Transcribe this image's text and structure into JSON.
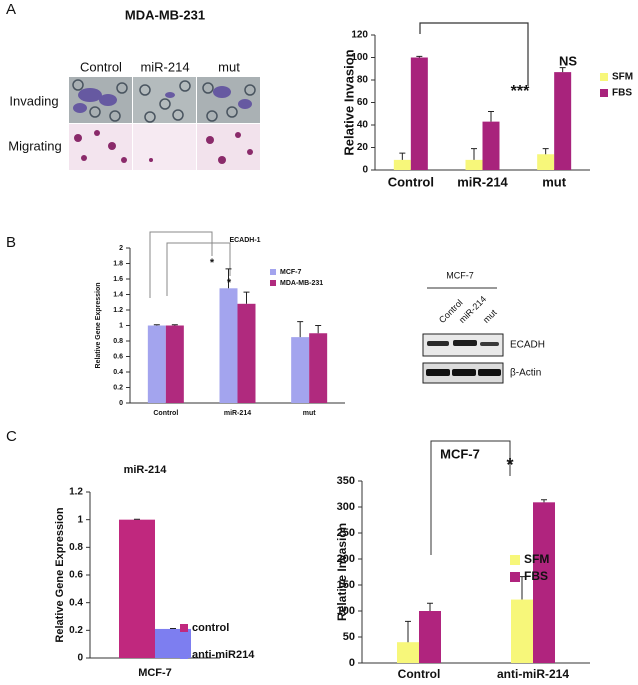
{
  "panel_labels": [
    "A",
    "B",
    "C"
  ],
  "panel_a": {
    "title": "MDA-MB-231",
    "columns": [
      "Control",
      "miR-214",
      "mut"
    ],
    "rows": [
      "Invading",
      "Migrating"
    ]
  },
  "western_blot": {
    "title": "MCF-7",
    "lanes": [
      "Control",
      "miR-214",
      "mut"
    ],
    "bands": [
      "ECADH",
      "β-Actin"
    ]
  },
  "chart_data": [
    {
      "type": "bar",
      "y_label": "Relative Invasion",
      "categories": [
        "Control",
        "miR-214",
        "mut"
      ],
      "series": [
        {
          "name": "SFM",
          "color": "#f7f77a",
          "values": [
            9,
            9,
            14
          ],
          "errors": [
            6,
            10,
            5
          ]
        },
        {
          "name": "FBS",
          "color": "#a8237c",
          "values": [
            100,
            43,
            87
          ],
          "errors": [
            1,
            9,
            4
          ]
        }
      ],
      "ylim": [
        0,
        120
      ],
      "yticks": [
        0,
        20,
        40,
        60,
        80,
        100,
        120
      ],
      "annotations": [
        "***",
        "NS"
      ]
    },
    {
      "type": "bar",
      "title": "ECADH-1",
      "y_label": "Relative Gene Expression",
      "categories": [
        "Control",
        "miR-214",
        "mut"
      ],
      "series": [
        {
          "name": "MCF-7",
          "color": "#a3a4ee",
          "values": [
            1,
            1.48,
            0.85
          ],
          "errors": [
            0.01,
            0.25,
            0.2
          ]
        },
        {
          "name": "MDA-MB-231",
          "color": "#b02a7e",
          "values": [
            1,
            1.28,
            0.9
          ],
          "errors": [
            0.01,
            0.15,
            0.1
          ]
        }
      ],
      "ylim": [
        0,
        2
      ],
      "yticks": [
        0,
        0.2,
        0.4,
        0.6,
        0.8,
        1,
        1.2,
        1.4,
        1.6,
        1.8,
        2
      ],
      "annotations": [
        "*",
        "*"
      ]
    },
    {
      "type": "bar",
      "title": "miR-214",
      "y_label": "Relative Gene Expression",
      "categories": [
        "MCF-7"
      ],
      "series": [
        {
          "name": "control",
          "color": "#c0287e",
          "values": [
            1
          ],
          "errors": [
            0.003
          ]
        },
        {
          "name": "anti-miR214",
          "color": "#7d7ef0",
          "values": [
            0.21
          ],
          "errors": [
            0.003
          ]
        }
      ],
      "ylim": [
        0,
        1.2
      ],
      "yticks": [
        0,
        0.2,
        0.4,
        0.6,
        0.8,
        1,
        1.2
      ]
    },
    {
      "type": "bar",
      "title": "MCF-7",
      "y_label": "Relative Invasion",
      "categories": [
        "Control",
        "anti-miR-214"
      ],
      "series": [
        {
          "name": "SFM",
          "color": "#f7f77a",
          "values": [
            40,
            122
          ],
          "errors": [
            40,
            44
          ]
        },
        {
          "name": "FBS",
          "color": "#b0247e",
          "values": [
            100,
            309
          ],
          "errors": [
            15,
            5
          ]
        }
      ],
      "ylim": [
        0,
        350
      ],
      "yticks": [
        0,
        50,
        100,
        150,
        200,
        250,
        300,
        350
      ],
      "annotations": [
        "*"
      ]
    }
  ]
}
